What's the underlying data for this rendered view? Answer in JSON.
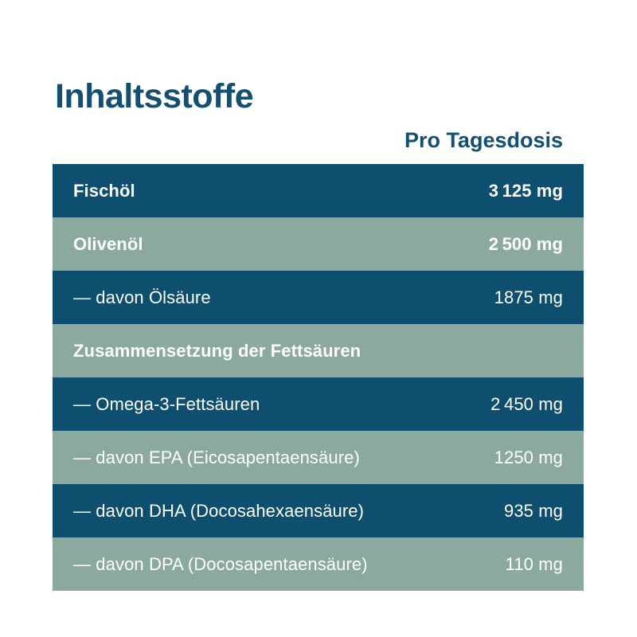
{
  "page": {
    "background": "#FFFFFF"
  },
  "title": "Inhaltsstoffe",
  "table": {
    "column_header": "Pro Tagesdosis",
    "rows": [
      {
        "label": "Fischöl",
        "value": "3 125 mg",
        "bold": true,
        "variant": "blue"
      },
      {
        "label": "Olivenöl",
        "value": "2 500 mg",
        "bold": true,
        "variant": "green"
      },
      {
        "label": "— davon Ölsäure",
        "value": "1875 mg",
        "bold": false,
        "variant": "blue"
      },
      {
        "label": "Zusammensetzung der Fettsäuren",
        "value": "",
        "bold": true,
        "variant": "green"
      },
      {
        "label": "— Omega-3-Fettsäuren",
        "value": "2 450 mg",
        "bold": false,
        "variant": "blue"
      },
      {
        "label": "— davon EPA (Eicosapentaensäure)",
        "value": "1250 mg",
        "bold": false,
        "variant": "green"
      },
      {
        "label": "— davon DHA (Docosahexaensäure)",
        "value": "935 mg",
        "bold": false,
        "variant": "blue"
      },
      {
        "label": "— davon DPA (Docosapentaensäure)",
        "value": "110 mg",
        "bold": false,
        "variant": "green"
      }
    ]
  },
  "colors": {
    "row_blue": "#0E4E6E",
    "row_green": "#8CA9A0",
    "heading_blue": "#134F70",
    "row_text": "#FFFFFF"
  }
}
